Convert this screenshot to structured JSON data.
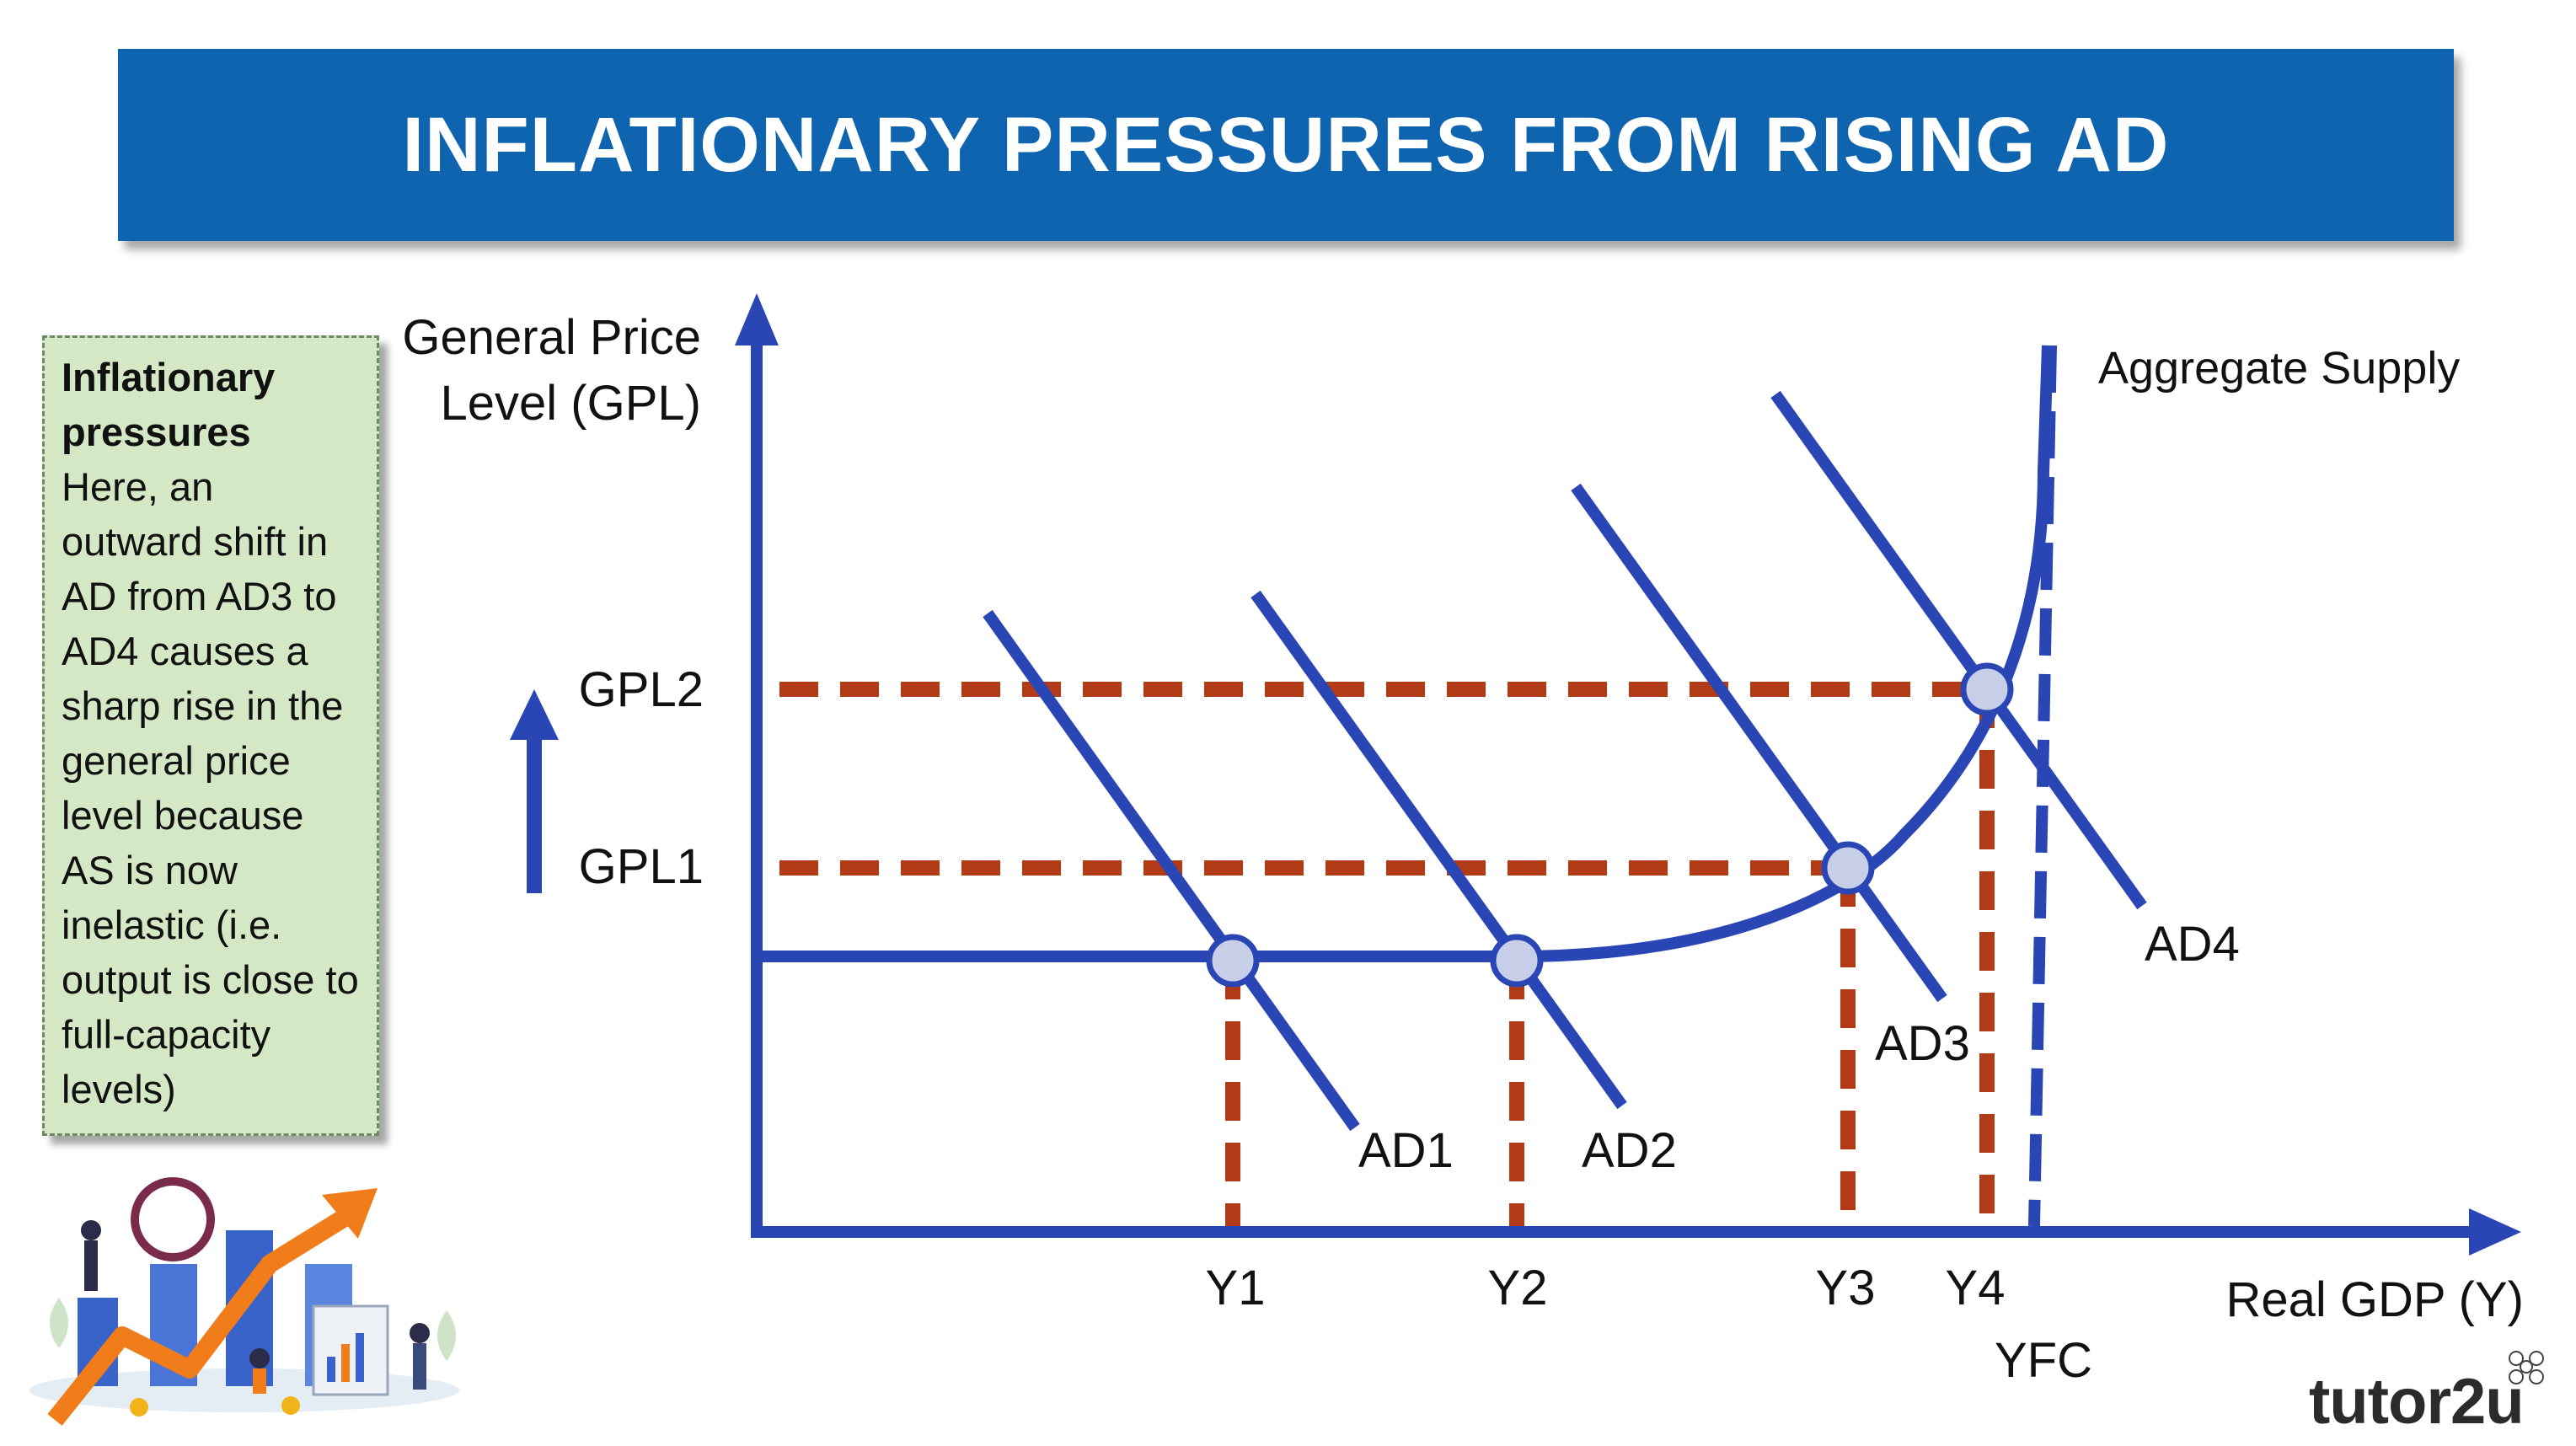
{
  "title": "INFLATIONARY PRESSURES FROM RISING AD",
  "note": {
    "heading": "Inflationary pressures",
    "text": "Here, an outward shift in AD from AD3 to AD4 causes a sharp rise in the general price level because AS is now inelastic (i.e. output is close to full-capacity levels)"
  },
  "diagram": {
    "y_axis_label_line1": "General Price",
    "y_axis_label_line2": "Level (GPL)",
    "x_axis_label": "Real GDP (Y)",
    "as_label": "Aggregate Supply",
    "price_levels": [
      "GPL2",
      "GPL1"
    ],
    "output_levels": [
      "Y1",
      "Y2",
      "Y3",
      "Y4"
    ],
    "yfc_label": "YFC",
    "ad_curves": [
      "AD1",
      "AD2",
      "AD3",
      "AD4"
    ]
  },
  "colors": {
    "banner": "#0f64b0",
    "curve": "#2a46b5",
    "dashed_guides": "#b23a16",
    "note_bg": "#d5e8c6",
    "equilibrium_point": "#c7cfe8"
  },
  "brand": "tutor2u"
}
